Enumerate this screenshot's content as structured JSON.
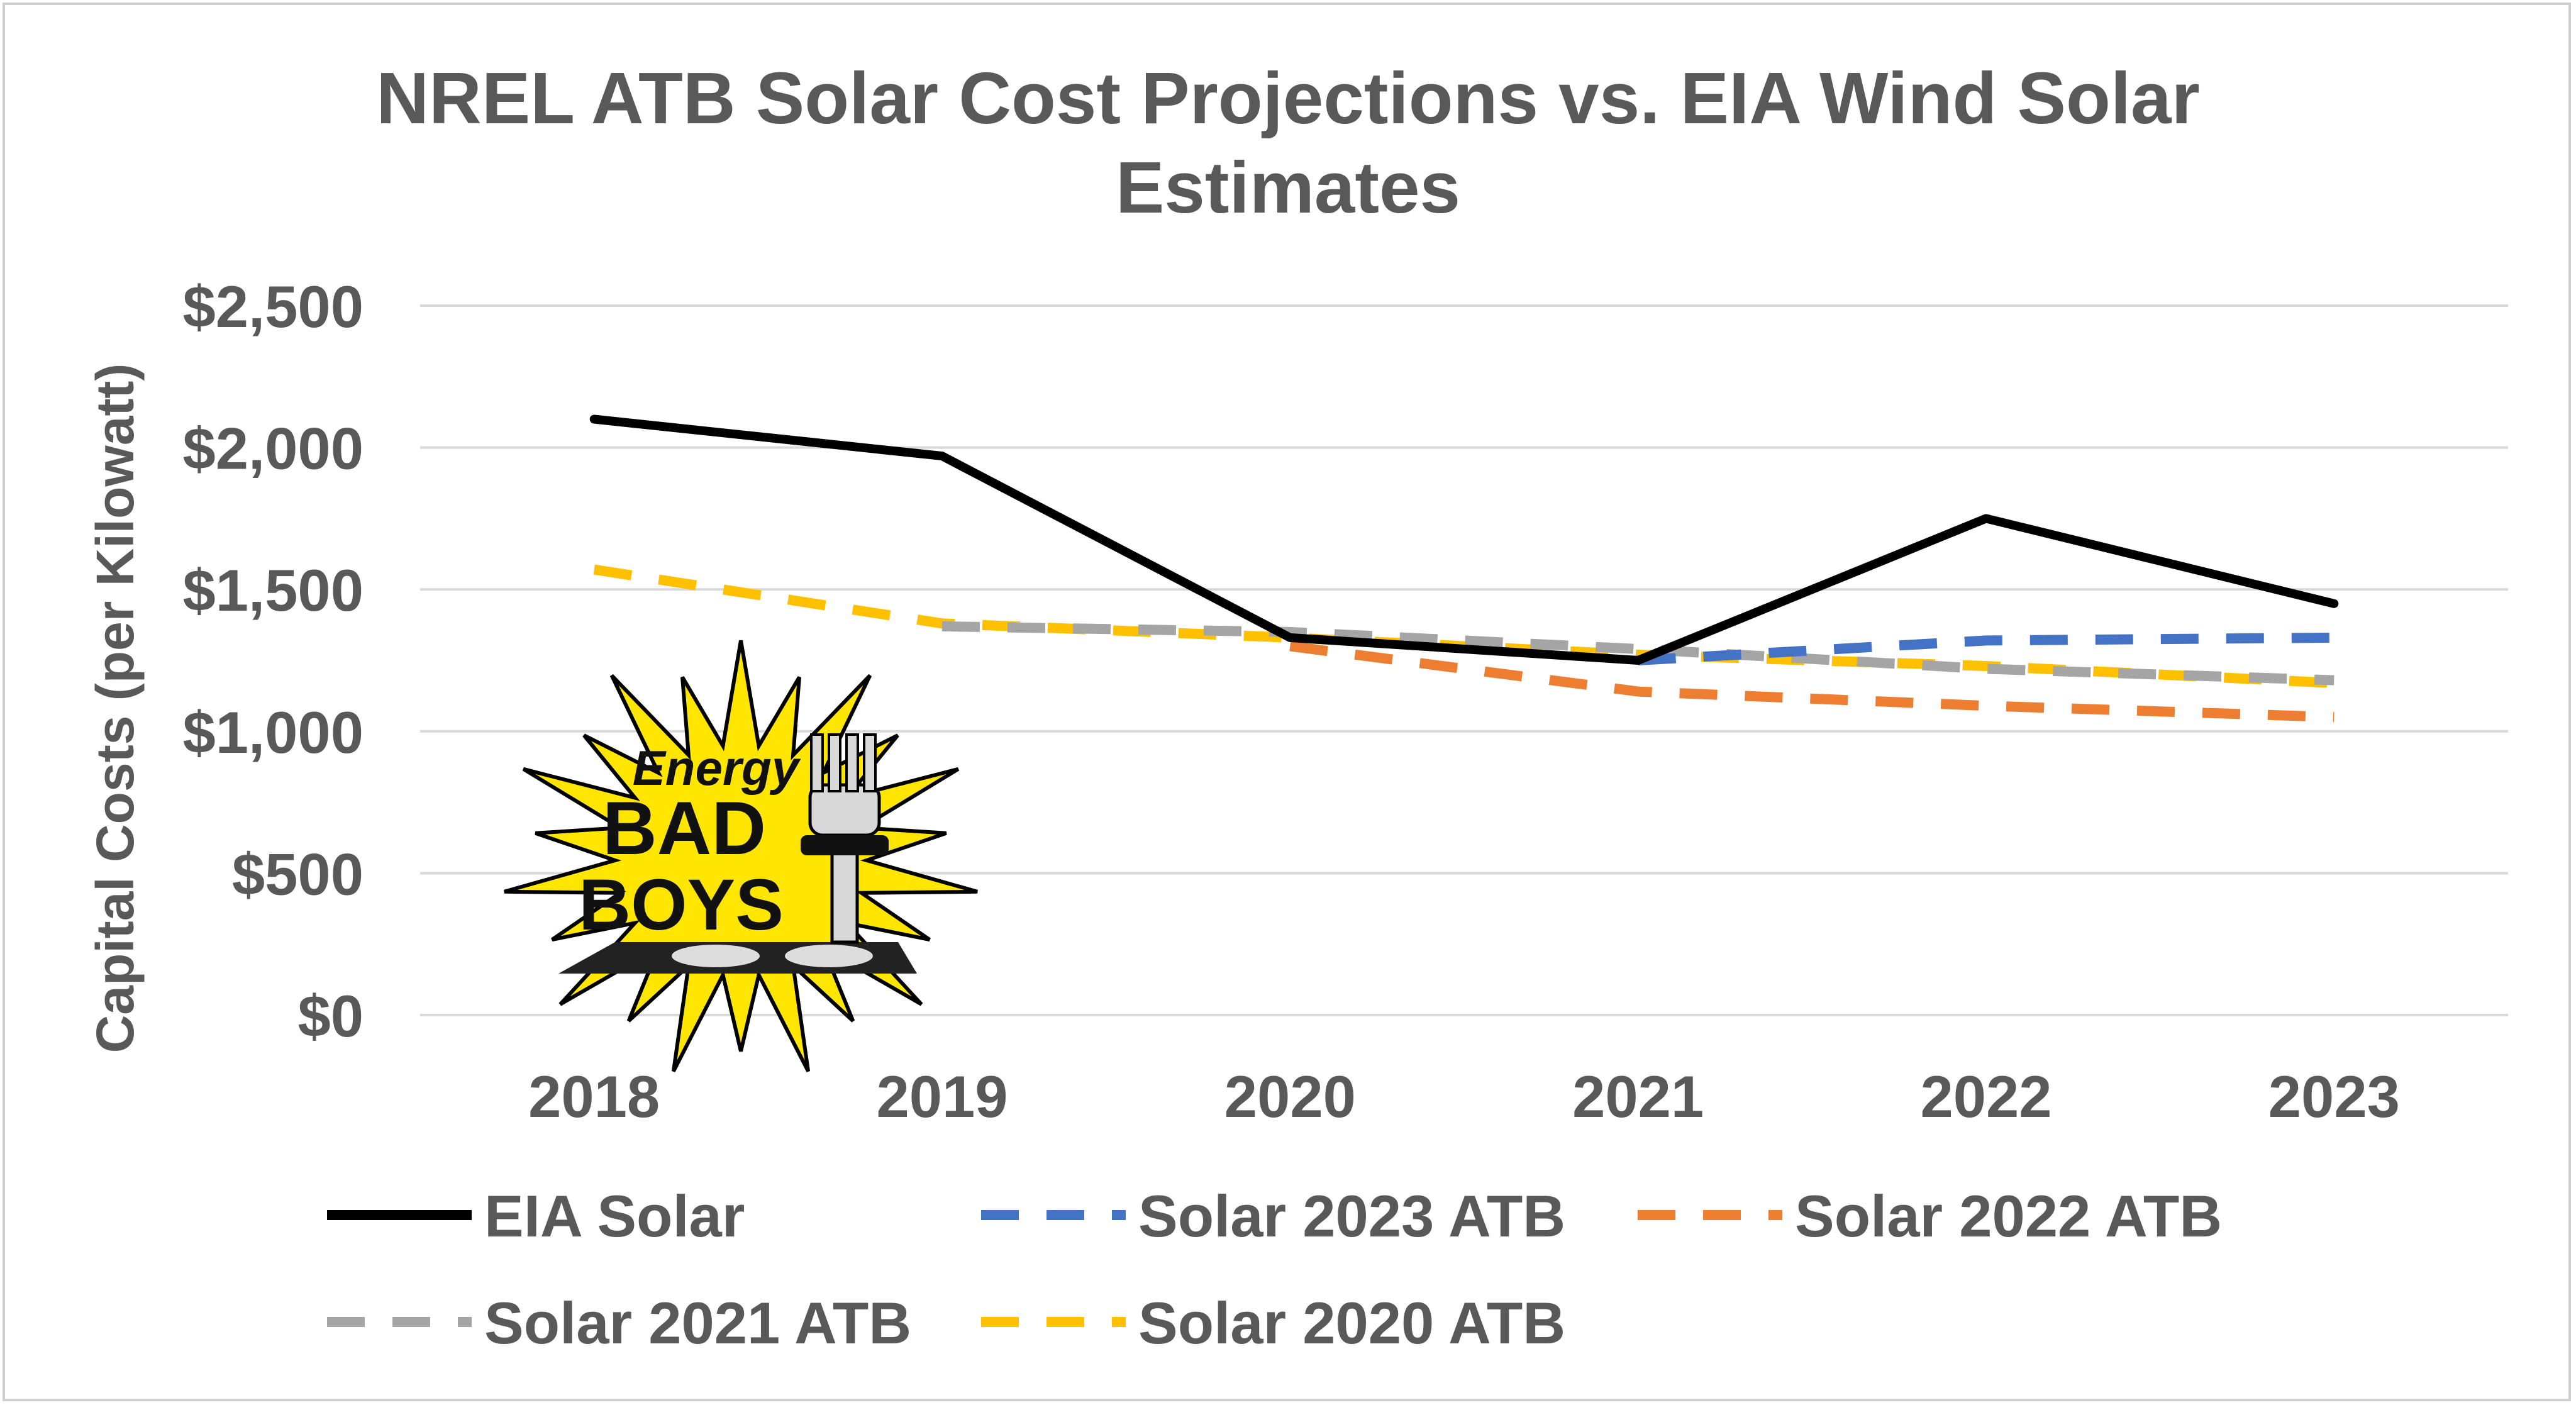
{
  "chart_data": {
    "type": "line",
    "title_lines": [
      "NREL ATB Solar Cost Projections vs. EIA Wind Solar",
      "Estimates"
    ],
    "ylabel": "Capital Costs (per Kilowatt)",
    "xlabel": "",
    "categories": [
      "2018",
      "2019",
      "2020",
      "2021",
      "2022",
      "2023"
    ],
    "ylim": [
      0,
      2500
    ],
    "yticks": [
      0,
      500,
      1000,
      1500,
      2000,
      2500
    ],
    "ytick_labels": [
      "$0",
      "$500",
      "$1,000",
      "$1,500",
      "$2,000",
      "$2,500"
    ],
    "grid": true,
    "legend_position": "bottom",
    "series": [
      {
        "name": "EIA Solar",
        "values": [
          2100,
          1970,
          1330,
          1250,
          1750,
          1450
        ],
        "color": "#000000",
        "dashed": false
      },
      {
        "name": "Solar 2023 ATB",
        "values": [
          null,
          null,
          null,
          1250,
          1320,
          1330
        ],
        "color": "#4472c4",
        "dashed": true
      },
      {
        "name": "Solar 2022 ATB",
        "values": [
          null,
          null,
          1300,
          1140,
          1090,
          1050
        ],
        "color": "#ed7d31",
        "dashed": true
      },
      {
        "name": "Solar 2021 ATB",
        "values": [
          null,
          1370,
          1350,
          1290,
          1220,
          1180
        ],
        "color": "#a5a5a5",
        "dashed": true
      },
      {
        "name": "Solar 2020 ATB",
        "values": [
          1570,
          1380,
          1330,
          1270,
          1230,
          1170
        ],
        "color": "#ffc000",
        "dashed": true
      }
    ]
  },
  "logo": {
    "name": "energy-bad-boys-logo",
    "text_lines": [
      "Energy",
      "BAD",
      "BOYS"
    ],
    "burst_color": "#ffe600",
    "outline_color": "#000000"
  }
}
